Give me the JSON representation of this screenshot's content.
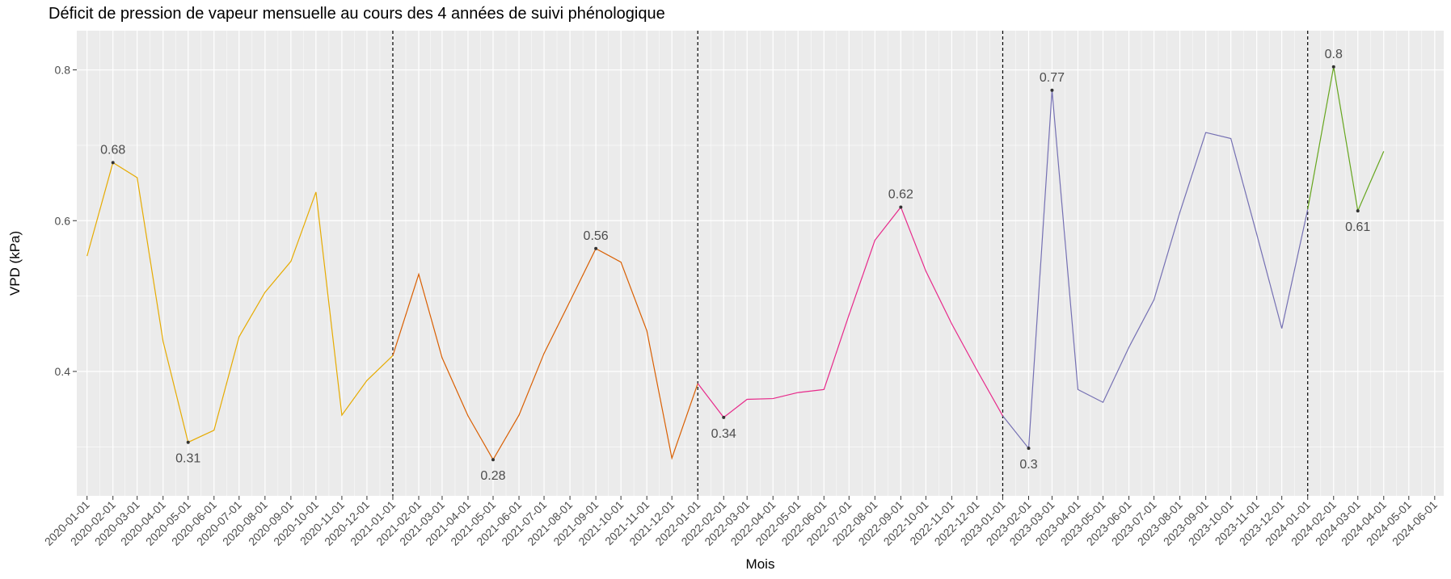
{
  "chart_data": {
    "type": "line",
    "title": "Déficit de pression de vapeur mensuelle au cours des 4 années de suivi phénologique",
    "xlabel": "Mois",
    "ylabel": "VPD (kPa)",
    "ylim": [
      0.235,
      0.852
    ],
    "y_ticks": [
      0.4,
      0.6,
      0.8
    ],
    "y_tick_labels": [
      "0.4",
      "0.6",
      "0.8"
    ],
    "x_ticks": [
      "2020-01-01",
      "2020-02-01",
      "2020-03-01",
      "2020-04-01",
      "2020-05-01",
      "2020-06-01",
      "2020-07-01",
      "2020-08-01",
      "2020-09-01",
      "2020-10-01",
      "2020-11-01",
      "2020-12-01",
      "2021-01-01",
      "2021-02-01",
      "2021-03-01",
      "2021-04-01",
      "2021-05-01",
      "2021-06-01",
      "2021-07-01",
      "2021-08-01",
      "2021-09-01",
      "2021-10-01",
      "2021-11-01",
      "2021-12-01",
      "2022-01-01",
      "2022-02-01",
      "2022-03-01",
      "2022-04-01",
      "2022-05-01",
      "2022-06-01",
      "2022-07-01",
      "2022-08-01",
      "2022-09-01",
      "2022-10-01",
      "2022-11-01",
      "2022-12-01",
      "2023-01-01",
      "2023-02-01",
      "2023-03-01",
      "2023-04-01",
      "2023-05-01",
      "2023-06-01",
      "2023-07-01",
      "2023-08-01",
      "2023-09-01",
      "2023-10-01",
      "2023-11-01",
      "2023-12-01",
      "2024-01-01",
      "2024-02-01",
      "2024-03-01",
      "2024-04-01",
      "2024-05-01",
      "2024-06-01"
    ],
    "grid": true,
    "legend": "none",
    "background_color": "#EBEBEB",
    "gridline_color": "#FFFFFF",
    "vlines": [
      "2021-01-01",
      "2022-01-01",
      "2023-01-01",
      "2024-01-01"
    ],
    "series": [
      {
        "color": "#E6AB02",
        "x": [
          "2020-01-01",
          "2020-02-01",
          "2020-03-01",
          "2020-04-01",
          "2020-05-01",
          "2020-06-01",
          "2020-07-01",
          "2020-08-01",
          "2020-09-01",
          "2020-10-01",
          "2020-11-01",
          "2020-12-01",
          "2021-01-01"
        ],
        "y": [
          0.553,
          0.677,
          0.657,
          0.44,
          0.306,
          0.322,
          0.446,
          0.505,
          0.546,
          0.638,
          0.342,
          0.388,
          0.421
        ]
      },
      {
        "color": "#D95F02",
        "x": [
          "2021-01-01",
          "2021-02-01",
          "2021-03-01",
          "2021-04-01",
          "2021-05-01",
          "2021-06-01",
          "2021-07-01",
          "2021-08-01",
          "2021-09-01",
          "2021-10-01",
          "2021-11-01",
          "2021-12-01",
          "2022-01-01"
        ],
        "y": [
          0.421,
          0.529,
          0.418,
          0.341,
          0.283,
          0.342,
          0.424,
          0.493,
          0.563,
          0.545,
          0.454,
          0.285,
          0.384
        ]
      },
      {
        "color": "#E7298A",
        "x": [
          "2022-01-01",
          "2022-02-01",
          "2022-03-01",
          "2022-04-01",
          "2022-05-01",
          "2022-06-01",
          "2022-07-01",
          "2022-08-01",
          "2022-09-01",
          "2022-10-01",
          "2022-11-01",
          "2022-12-01",
          "2023-01-01"
        ],
        "y": [
          0.384,
          0.339,
          0.363,
          0.364,
          0.372,
          0.376,
          0.475,
          0.574,
          0.618,
          0.533,
          0.463,
          0.402,
          0.341
        ]
      },
      {
        "color": "#7570B3",
        "x": [
          "2023-01-01",
          "2023-02-01",
          "2023-03-01",
          "2023-04-01",
          "2023-05-01",
          "2023-06-01",
          "2023-07-01",
          "2023-08-01",
          "2023-09-01",
          "2023-10-01",
          "2023-11-01",
          "2023-12-01",
          "2024-01-01"
        ],
        "y": [
          0.341,
          0.298,
          0.773,
          0.376,
          0.359,
          0.432,
          0.495,
          0.611,
          0.717,
          0.709,
          0.582,
          0.457,
          0.615
        ]
      },
      {
        "color": "#66A61E",
        "x": [
          "2024-01-01",
          "2024-02-01",
          "2024-03-01",
          "2024-04-01"
        ],
        "y": [
          0.615,
          0.804,
          0.613,
          0.692
        ]
      }
    ],
    "annotations": [
      {
        "x": "2020-02-01",
        "y": 0.677,
        "text": "0.68",
        "position": "above"
      },
      {
        "x": "2020-05-01",
        "y": 0.306,
        "text": "0.31",
        "position": "below"
      },
      {
        "x": "2021-05-01",
        "y": 0.283,
        "text": "0.28",
        "position": "below"
      },
      {
        "x": "2021-09-01",
        "y": 0.563,
        "text": "0.56",
        "position": "above"
      },
      {
        "x": "2022-02-01",
        "y": 0.339,
        "text": "0.34",
        "position": "below"
      },
      {
        "x": "2022-09-01",
        "y": 0.618,
        "text": "0.62",
        "position": "above"
      },
      {
        "x": "2023-02-01",
        "y": 0.298,
        "text": "0.3",
        "position": "below"
      },
      {
        "x": "2023-03-01",
        "y": 0.773,
        "text": "0.77",
        "position": "above"
      },
      {
        "x": "2024-02-01",
        "y": 0.804,
        "text": "0.8",
        "position": "above"
      },
      {
        "x": "2024-03-01",
        "y": 0.613,
        "text": "0.61",
        "position": "below"
      }
    ]
  }
}
